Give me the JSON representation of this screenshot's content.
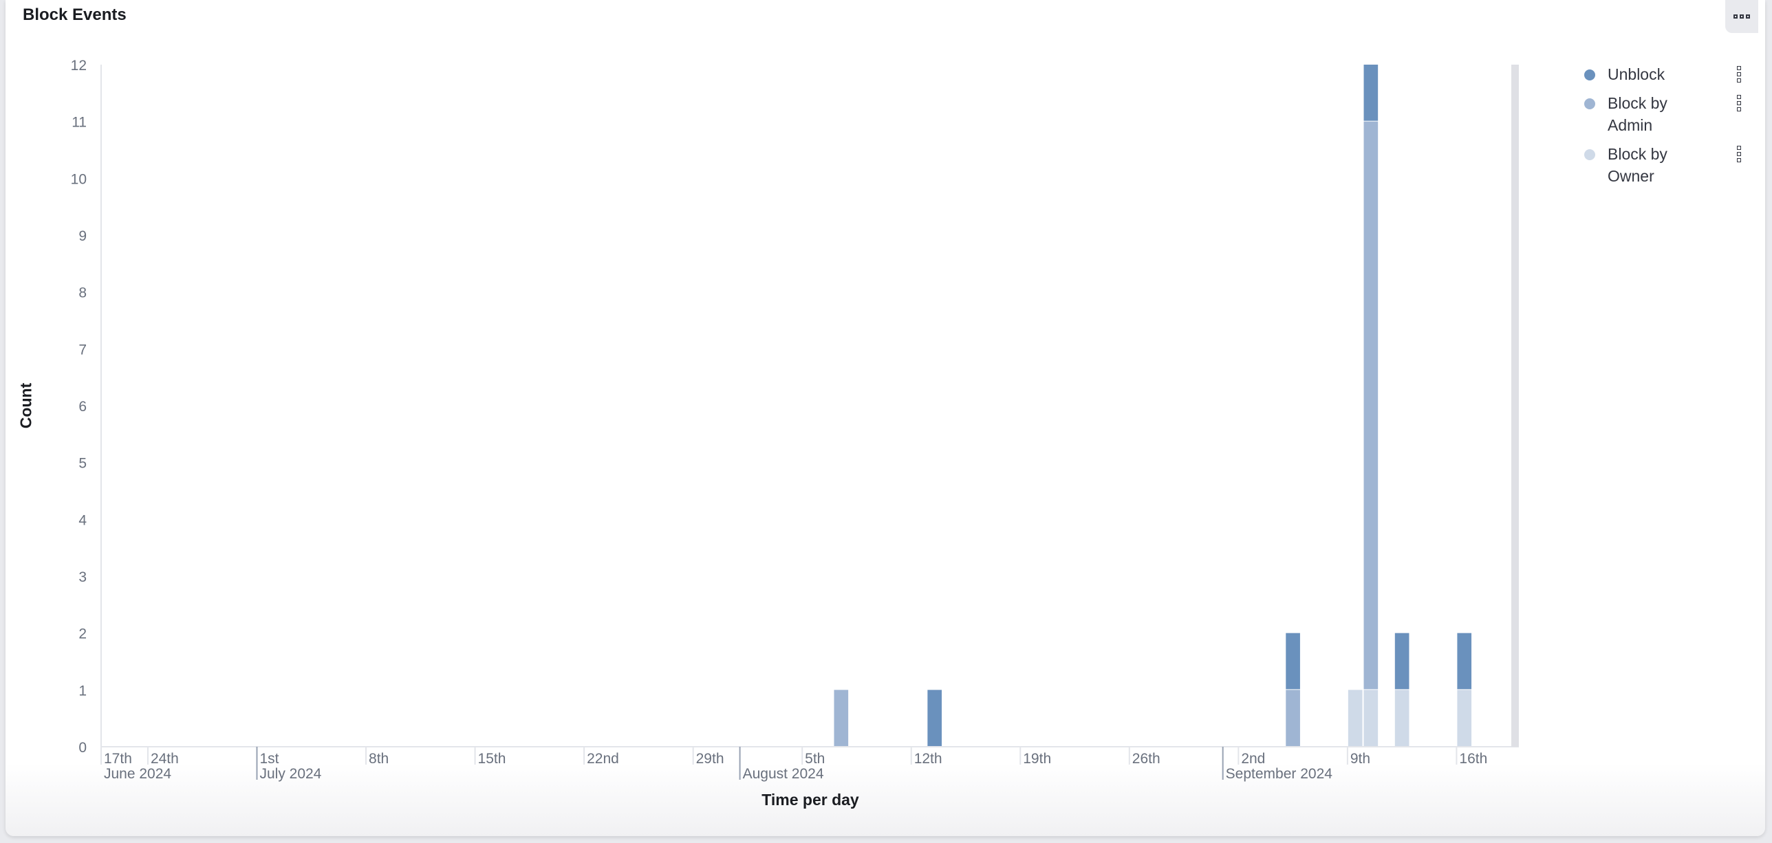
{
  "panel": {
    "title": "Block Events"
  },
  "chart_data": {
    "type": "bar",
    "stacked": true,
    "title": "Block Events",
    "xlabel": "Time per day",
    "ylabel": "Count",
    "ylim": [
      0,
      12
    ],
    "xlim": [
      "2024-06-21",
      "2024-09-20"
    ],
    "yticks": [
      0,
      1,
      2,
      3,
      4,
      5,
      6,
      7,
      8,
      9,
      10,
      11,
      12
    ],
    "xticks": [
      {
        "date": "2024-06-17",
        "label": "17th"
      },
      {
        "date": "2024-06-24",
        "label": "24th"
      },
      {
        "date": "2024-07-01",
        "label": "1st"
      },
      {
        "date": "2024-07-08",
        "label": "8th"
      },
      {
        "date": "2024-07-15",
        "label": "15th"
      },
      {
        "date": "2024-07-22",
        "label": "22nd"
      },
      {
        "date": "2024-07-29",
        "label": "29th"
      },
      {
        "date": "2024-08-05",
        "label": "5th"
      },
      {
        "date": "2024-08-12",
        "label": "12th"
      },
      {
        "date": "2024-08-19",
        "label": "19th"
      },
      {
        "date": "2024-08-26",
        "label": "26th"
      },
      {
        "date": "2024-09-02",
        "label": "2nd"
      },
      {
        "date": "2024-09-09",
        "label": "9th"
      },
      {
        "date": "2024-09-16",
        "label": "16th"
      }
    ],
    "months": [
      {
        "date": "2024-06-01",
        "label": "June 2024"
      },
      {
        "date": "2024-07-01",
        "label": "July 2024"
      },
      {
        "date": "2024-08-01",
        "label": "August 2024"
      },
      {
        "date": "2024-09-01",
        "label": "September 2024"
      }
    ],
    "grid": false,
    "legend_position": "right",
    "x": [
      "2024-08-07",
      "2024-08-13",
      "2024-09-05",
      "2024-09-09",
      "2024-09-10",
      "2024-09-12",
      "2024-09-16"
    ],
    "series": [
      {
        "name": "Block by Owner",
        "color": "#cfdae8",
        "values": [
          0,
          0,
          0,
          1,
          1,
          1,
          1
        ]
      },
      {
        "name": "Block by Admin",
        "color": "#9fb5d3",
        "values": [
          1,
          0,
          1,
          0,
          10,
          0,
          0
        ]
      },
      {
        "name": "Unblock",
        "color": "#6a91bd",
        "values": [
          0,
          1,
          1,
          0,
          1,
          1,
          1
        ]
      }
    ],
    "legend": [
      {
        "label": "Unblock",
        "color": "#6a91bd"
      },
      {
        "label": "Block by Admin",
        "color": "#9fb5d3"
      },
      {
        "label": "Block by Owner",
        "color": "#cfdae8"
      }
    ]
  }
}
